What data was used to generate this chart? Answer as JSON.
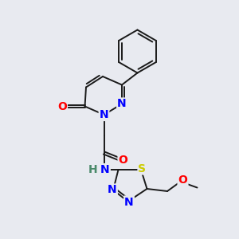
{
  "background_color": "#e8eaf0",
  "bond_color": "#1a1a1a",
  "atom_colors": {
    "N": "#0000ff",
    "O": "#ff0000",
    "S": "#cccc00",
    "H": "#4a8a6a",
    "C": "#1a1a1a"
  },
  "font_size_atom": 10,
  "figsize": [
    3.0,
    3.0
  ],
  "dpi": 100,
  "xlim": [
    0,
    10
  ],
  "ylim": [
    0,
    10
  ]
}
